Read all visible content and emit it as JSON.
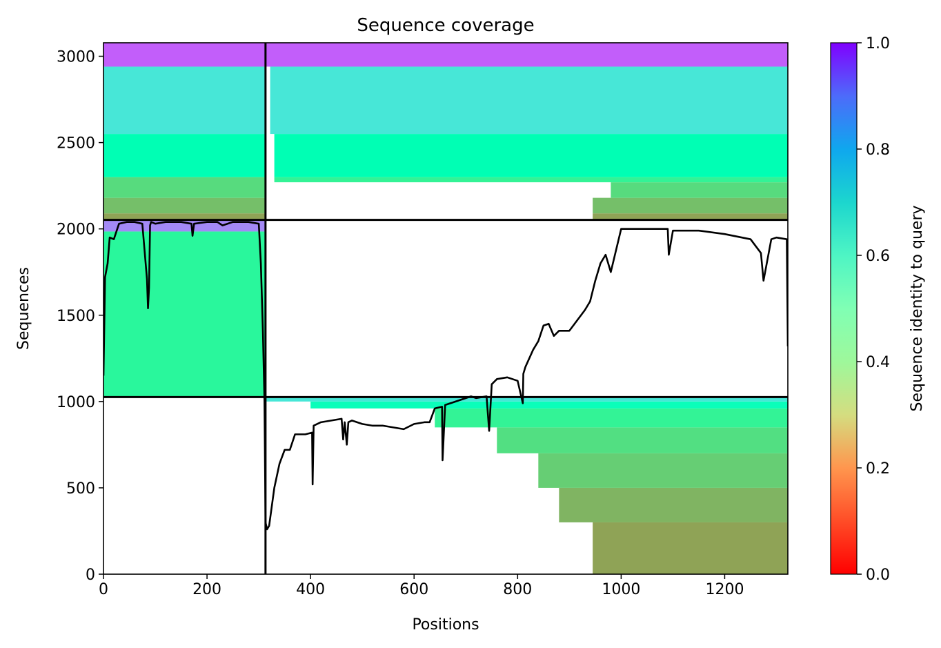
{
  "chart_data": {
    "type": "heatmap",
    "title": "Sequence coverage",
    "xlabel": "Positions",
    "ylabel": "Sequences",
    "xlim": [
      0,
      1322
    ],
    "ylim": [
      0,
      3078
    ],
    "x_ticks": [
      0,
      200,
      400,
      600,
      800,
      1000,
      1200
    ],
    "y_ticks": [
      0,
      500,
      1000,
      1500,
      2000,
      2500,
      3000
    ],
    "grid": false,
    "colorbar": {
      "label": "Sequence identity to query",
      "colormap": "rainbow_r",
      "range": [
        0,
        1
      ],
      "ticks": [
        0.0,
        0.2,
        0.4,
        0.6,
        0.8,
        1.0
      ],
      "tick_labels": [
        "0.0",
        "0.2",
        "0.4",
        "0.6",
        "0.8",
        "1.0"
      ]
    },
    "chain_boundaries": {
      "x": [
        313
      ],
      "y": [
        1026,
        2052
      ]
    },
    "blocks": [
      {
        "name": "A",
        "x_range": [
          0,
          313
        ],
        "bands": [
          {
            "y": [
              1026,
              1985
            ],
            "identity": 0.42
          },
          {
            "y": [
              1985,
              2052
            ],
            "identity": 0.82
          }
        ]
      },
      {
        "name": "A",
        "x_range": [
          0,
          313
        ],
        "bands": [
          {
            "y": [
              2052,
              2090
            ],
            "identity": 0.22
          },
          {
            "y": [
              2090,
              2180
            ],
            "identity": 0.27
          },
          {
            "y": [
              2180,
              2300
            ],
            "identity": 0.33
          },
          {
            "y": [
              2300,
              2550
            ],
            "identity": 0.5
          },
          {
            "y": [
              2550,
              2940
            ],
            "identity": 0.64
          },
          {
            "y": [
              2940,
              3078
            ],
            "identity": 0.88
          }
        ]
      },
      {
        "name": "B",
        "x_range": [
          313,
          1322
        ],
        "bands": [
          {
            "y": [
              2052,
              2090
            ],
            "identity": 0.22,
            "x_start": 945
          },
          {
            "y": [
              2090,
              2180
            ],
            "identity": 0.27,
            "x_start": 945
          },
          {
            "y": [
              2180,
              2270
            ],
            "identity": 0.33,
            "x_start": 980
          },
          {
            "y": [
              2270,
              2300
            ],
            "identity": 0.4,
            "x_start": 330
          },
          {
            "y": [
              2300,
              2550
            ],
            "identity": 0.5,
            "x_start": 330
          },
          {
            "y": [
              2550,
              2940
            ],
            "identity": 0.64,
            "x_start": 322
          },
          {
            "y": [
              2940,
              3078
            ],
            "identity": 0.88,
            "x_start": 313
          }
        ]
      },
      {
        "name": "B",
        "x_range": [
          313,
          1322
        ],
        "bands": [
          {
            "y": [
              0,
              300
            ],
            "identity": 0.22,
            "x_start": 945
          },
          {
            "y": [
              300,
              500
            ],
            "identity": 0.25,
            "x_start": 880
          },
          {
            "y": [
              500,
              700
            ],
            "identity": 0.3,
            "x_start": 840
          },
          {
            "y": [
              700,
              850
            ],
            "identity": 0.34,
            "x_start": 760
          },
          {
            "y": [
              850,
              960
            ],
            "identity": 0.4,
            "x_start": 640
          },
          {
            "y": [
              960,
              1000
            ],
            "identity": 0.52,
            "x_start": 400
          },
          {
            "y": [
              1000,
              1026
            ],
            "identity": 0.64,
            "x_start": 313
          }
        ]
      }
    ],
    "coverage_line": {
      "name": "coverage",
      "x": [
        0,
        3,
        8,
        12,
        20,
        30,
        45,
        60,
        75,
        84,
        86,
        88,
        90,
        92,
        100,
        120,
        150,
        170,
        172,
        175,
        200,
        220,
        230,
        250,
        280,
        300,
        304,
        308,
        311,
        313,
        316,
        320,
        330,
        340,
        350,
        360,
        370,
        390,
        403,
        404,
        406,
        420,
        440,
        460,
        463,
        466,
        470,
        473,
        480,
        500,
        520,
        540,
        560,
        580,
        600,
        620,
        630,
        640,
        654,
        655,
        660,
        680,
        700,
        710,
        720,
        740,
        745,
        750,
        760,
        780,
        800,
        810,
        811,
        815,
        830,
        840,
        850,
        860,
        870,
        880,
        900,
        910,
        930,
        940,
        950,
        960,
        970,
        980,
        1000,
        1050,
        1090,
        1092,
        1100,
        1150,
        1200,
        1250,
        1270,
        1275,
        1290,
        1300,
        1320,
        1322
      ],
      "y": [
        1150,
        1720,
        1800,
        1950,
        1940,
        2030,
        2040,
        2040,
        2030,
        1710,
        1540,
        1660,
        2020,
        2040,
        2030,
        2040,
        2040,
        2030,
        1960,
        2030,
        2040,
        2040,
        2020,
        2040,
        2040,
        2030,
        1800,
        1400,
        1000,
        300,
        260,
        280,
        500,
        640,
        720,
        720,
        810,
        810,
        820,
        520,
        860,
        880,
        890,
        900,
        780,
        880,
        750,
        880,
        890,
        870,
        860,
        860,
        850,
        840,
        870,
        880,
        880,
        960,
        970,
        660,
        980,
        1000,
        1020,
        1030,
        1020,
        1030,
        830,
        1100,
        1130,
        1140,
        1120,
        990,
        1160,
        1200,
        1300,
        1350,
        1440,
        1450,
        1380,
        1410,
        1410,
        1450,
        1530,
        1580,
        1700,
        1800,
        1850,
        1750,
        2000,
        2000,
        2000,
        1850,
        1990,
        1990,
        1970,
        1940,
        1860,
        1700,
        1940,
        1950,
        1940,
        1320
      ]
    }
  }
}
